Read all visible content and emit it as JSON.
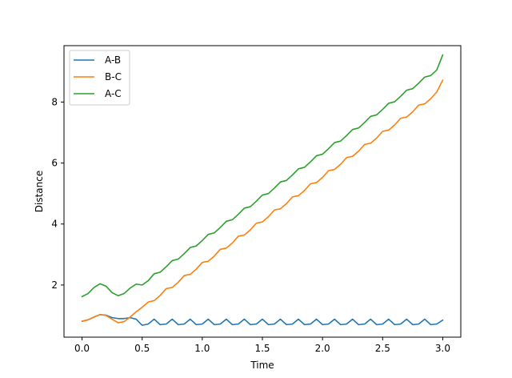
{
  "chart_data": {
    "type": "line",
    "xlabel": "Time",
    "ylabel": "Distance",
    "xlim": [
      -0.15,
      3.15
    ],
    "ylim": [
      0.29,
      9.85
    ],
    "xticks": [
      0.0,
      0.5,
      1.0,
      1.5,
      2.0,
      2.5,
      3.0
    ],
    "xtick_labels": [
      "0.0",
      "0.5",
      "1.0",
      "1.5",
      "2.0",
      "2.5",
      "3.0"
    ],
    "yticks": [
      2,
      4,
      6,
      8
    ],
    "ytick_labels": [
      "2",
      "4",
      "6",
      "8"
    ],
    "grid": false,
    "legend_position": "upper-left",
    "series": [
      {
        "name": "A-B",
        "color": "#1f77b4",
        "x": [
          0.0,
          0.05,
          0.1,
          0.15,
          0.2,
          0.25,
          0.3,
          0.35,
          0.4,
          0.45,
          0.5,
          0.55,
          0.6,
          0.65,
          0.7,
          0.75,
          0.8,
          0.85,
          0.9,
          0.95,
          1.0,
          1.05,
          1.1,
          1.15,
          1.2,
          1.25,
          1.3,
          1.35,
          1.4,
          1.45,
          1.5,
          1.55,
          1.6,
          1.65,
          1.7,
          1.75,
          1.8,
          1.85,
          1.9,
          1.95,
          2.0,
          2.05,
          2.1,
          2.15,
          2.2,
          2.25,
          2.3,
          2.35,
          2.4,
          2.45,
          2.5,
          2.55,
          2.6,
          2.65,
          2.7,
          2.75,
          2.8,
          2.85,
          2.9,
          2.95,
          3.0
        ],
        "y": [
          0.81,
          0.86,
          0.95,
          1.03,
          1.01,
          0.93,
          0.9,
          0.9,
          0.93,
          0.88,
          0.68,
          0.72,
          0.88,
          0.7,
          0.72,
          0.88,
          0.7,
          0.72,
          0.88,
          0.7,
          0.72,
          0.88,
          0.7,
          0.72,
          0.88,
          0.7,
          0.72,
          0.88,
          0.7,
          0.72,
          0.88,
          0.7,
          0.72,
          0.88,
          0.7,
          0.72,
          0.88,
          0.7,
          0.72,
          0.88,
          0.7,
          0.72,
          0.88,
          0.7,
          0.72,
          0.88,
          0.7,
          0.72,
          0.88,
          0.7,
          0.72,
          0.88,
          0.7,
          0.72,
          0.88,
          0.7,
          0.72,
          0.88,
          0.7,
          0.72,
          0.85
        ]
      },
      {
        "name": "B-C",
        "color": "#ff7f0e",
        "x": [
          0.0,
          0.05,
          0.1,
          0.15,
          0.2,
          0.25,
          0.3,
          0.35,
          0.4,
          0.45,
          0.5,
          0.55,
          0.6,
          0.65,
          0.7,
          0.75,
          0.8,
          0.85,
          0.9,
          0.95,
          1.0,
          1.05,
          1.1,
          1.15,
          1.2,
          1.25,
          1.3,
          1.35,
          1.4,
          1.45,
          1.5,
          1.55,
          1.6,
          1.65,
          1.7,
          1.75,
          1.8,
          1.85,
          1.9,
          1.95,
          2.0,
          2.05,
          2.1,
          2.15,
          2.2,
          2.25,
          2.3,
          2.35,
          2.4,
          2.45,
          2.5,
          2.55,
          2.6,
          2.65,
          2.7,
          2.75,
          2.8,
          2.85,
          2.9,
          2.95,
          3.0
        ],
        "y": [
          0.81,
          0.86,
          0.95,
          1.03,
          1.0,
          0.88,
          0.76,
          0.8,
          0.95,
          1.12,
          1.27,
          1.44,
          1.49,
          1.66,
          1.88,
          1.92,
          2.09,
          2.31,
          2.35,
          2.52,
          2.74,
          2.78,
          2.95,
          3.17,
          3.21,
          3.38,
          3.6,
          3.64,
          3.81,
          4.03,
          4.07,
          4.24,
          4.46,
          4.5,
          4.67,
          4.89,
          4.93,
          5.1,
          5.32,
          5.36,
          5.53,
          5.75,
          5.79,
          5.96,
          6.18,
          6.22,
          6.39,
          6.61,
          6.65,
          6.82,
          7.04,
          7.08,
          7.25,
          7.47,
          7.51,
          7.68,
          7.9,
          7.94,
          8.11,
          8.33,
          8.72
        ]
      },
      {
        "name": "A-C",
        "color": "#2ca02c",
        "x": [
          0.0,
          0.05,
          0.1,
          0.15,
          0.2,
          0.25,
          0.3,
          0.35,
          0.4,
          0.45,
          0.5,
          0.55,
          0.6,
          0.65,
          0.7,
          0.75,
          0.8,
          0.85,
          0.9,
          0.95,
          1.0,
          1.05,
          1.1,
          1.15,
          1.2,
          1.25,
          1.3,
          1.35,
          1.4,
          1.45,
          1.5,
          1.55,
          1.6,
          1.65,
          1.7,
          1.75,
          1.8,
          1.85,
          1.9,
          1.95,
          2.0,
          2.05,
          2.1,
          2.15,
          2.2,
          2.25,
          2.3,
          2.35,
          2.4,
          2.45,
          2.5,
          2.55,
          2.6,
          2.65,
          2.7,
          2.75,
          2.8,
          2.85,
          2.9,
          2.95,
          3.0
        ],
        "y": [
          1.62,
          1.72,
          1.92,
          2.04,
          1.96,
          1.75,
          1.65,
          1.72,
          1.9,
          2.03,
          2.0,
          2.14,
          2.37,
          2.42,
          2.6,
          2.8,
          2.85,
          3.03,
          3.23,
          3.28,
          3.46,
          3.66,
          3.71,
          3.89,
          4.09,
          4.14,
          4.32,
          4.52,
          4.57,
          4.75,
          4.95,
          5.0,
          5.18,
          5.38,
          5.43,
          5.61,
          5.81,
          5.86,
          6.04,
          6.24,
          6.29,
          6.47,
          6.67,
          6.72,
          6.9,
          7.1,
          7.15,
          7.33,
          7.53,
          7.58,
          7.76,
          7.96,
          8.01,
          8.19,
          8.39,
          8.44,
          8.62,
          8.82,
          8.87,
          9.05,
          9.55
        ]
      }
    ]
  }
}
